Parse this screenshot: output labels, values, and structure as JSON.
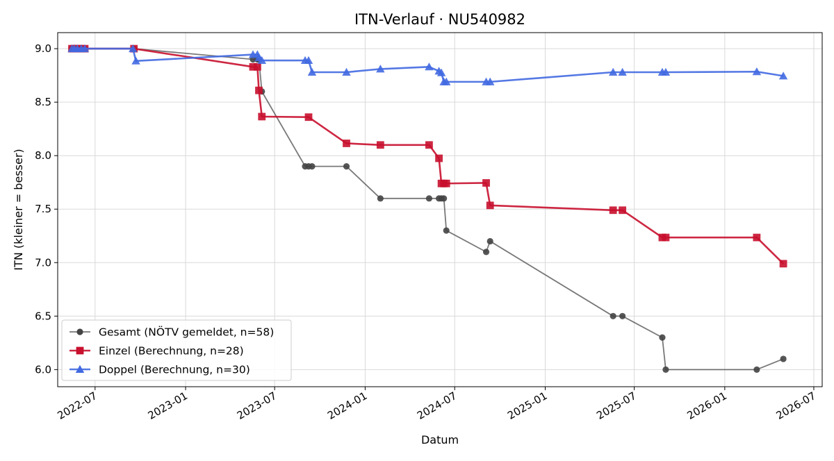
{
  "chart_data": {
    "type": "line",
    "title": "ITN-Verlauf · NU540982",
    "xlabel": "Datum",
    "ylabel": "ITN  (kleiner = besser)",
    "xlim": [
      "2022-04-16",
      "2026-07-18"
    ],
    "ylim": [
      5.84,
      9.15
    ],
    "x_ticks": [
      "2022-07",
      "2023-01",
      "2023-07",
      "2024-01",
      "2024-07",
      "2025-01",
      "2025-07",
      "2026-01",
      "2026-07"
    ],
    "y_ticks": [
      6.0,
      6.5,
      7.0,
      7.5,
      8.0,
      8.5,
      9.0
    ],
    "y_tick_labels": [
      "6.0",
      "6.5",
      "7.0",
      "7.5",
      "8.0",
      "8.5",
      "9.0"
    ],
    "grid": true,
    "legend_position": "lower-left",
    "series": [
      {
        "name": "Gesamt (NÖTV gemeldet, n=58)",
        "color": "#444444",
        "line_opacity": 0.72,
        "marker": "circle",
        "x": [
          "2022-05-15",
          "2022-05-20",
          "2022-05-26",
          "2022-06-03",
          "2022-06-10",
          "2022-09-18",
          "2023-05-18",
          "2023-05-27",
          "2023-05-30",
          "2023-06-05",
          "2023-09-01",
          "2023-09-08",
          "2023-09-15",
          "2023-11-24",
          "2024-02-01",
          "2024-05-10",
          "2024-05-30",
          "2024-06-04",
          "2024-06-09",
          "2024-06-14",
          "2024-09-03",
          "2024-09-11",
          "2025-05-19",
          "2025-06-07",
          "2025-08-27",
          "2025-09-03",
          "2026-03-07",
          "2026-04-30"
        ],
        "y": [
          9.0,
          9.0,
          9.0,
          9.0,
          9.0,
          9.0,
          8.9,
          8.9,
          8.9,
          8.6,
          7.9,
          7.9,
          7.9,
          7.9,
          7.6,
          7.6,
          7.6,
          7.6,
          7.6,
          7.3,
          7.1,
          7.2,
          6.5,
          6.5,
          6.3,
          6.0,
          6.0,
          6.1
        ]
      },
      {
        "name": "Einzel (Berechnung, n=28)",
        "color": "#c8102e",
        "marker": "square",
        "x": [
          "2022-05-15",
          "2022-05-20",
          "2022-05-26",
          "2022-06-03",
          "2022-06-10",
          "2022-09-18",
          "2023-05-18",
          "2023-05-27",
          "2023-05-30",
          "2023-06-05",
          "2023-09-08",
          "2023-11-24",
          "2024-02-01",
          "2024-05-10",
          "2024-05-30",
          "2024-06-04",
          "2024-06-09",
          "2024-06-14",
          "2024-09-03",
          "2024-09-11",
          "2025-05-19",
          "2025-06-07",
          "2025-08-27",
          "2025-09-03",
          "2026-03-07",
          "2026-04-30"
        ],
        "y": [
          9.0,
          9.0,
          9.0,
          9.0,
          9.0,
          9.0,
          8.83,
          8.83,
          8.61,
          8.365,
          8.36,
          8.115,
          8.1,
          8.1,
          7.975,
          7.74,
          7.74,
          7.74,
          7.745,
          7.535,
          7.49,
          7.49,
          7.235,
          7.235,
          7.235,
          6.99
        ]
      },
      {
        "name": "Doppel (Berechnung, n=30)",
        "color": "#4169e1",
        "marker": "triangle",
        "x": [
          "2022-05-15",
          "2022-05-20",
          "2022-05-26",
          "2022-06-03",
          "2022-06-10",
          "2022-09-16",
          "2022-09-22",
          "2023-05-18",
          "2023-05-27",
          "2023-05-30",
          "2023-06-05",
          "2023-09-01",
          "2023-09-08",
          "2023-09-15",
          "2023-11-24",
          "2024-02-01",
          "2024-05-10",
          "2024-05-30",
          "2024-06-04",
          "2024-06-09",
          "2024-06-14",
          "2024-09-03",
          "2024-09-11",
          "2025-05-19",
          "2025-06-07",
          "2025-08-27",
          "2025-09-03",
          "2026-03-07",
          "2026-04-30"
        ],
        "y": [
          9.0,
          9.0,
          9.0,
          9.0,
          9.0,
          9.0,
          8.885,
          8.945,
          8.945,
          8.915,
          8.89,
          8.89,
          8.89,
          8.78,
          8.78,
          8.81,
          8.83,
          8.79,
          8.775,
          8.69,
          8.69,
          8.69,
          8.69,
          8.78,
          8.78,
          8.78,
          8.78,
          8.785,
          8.745
        ]
      }
    ]
  }
}
